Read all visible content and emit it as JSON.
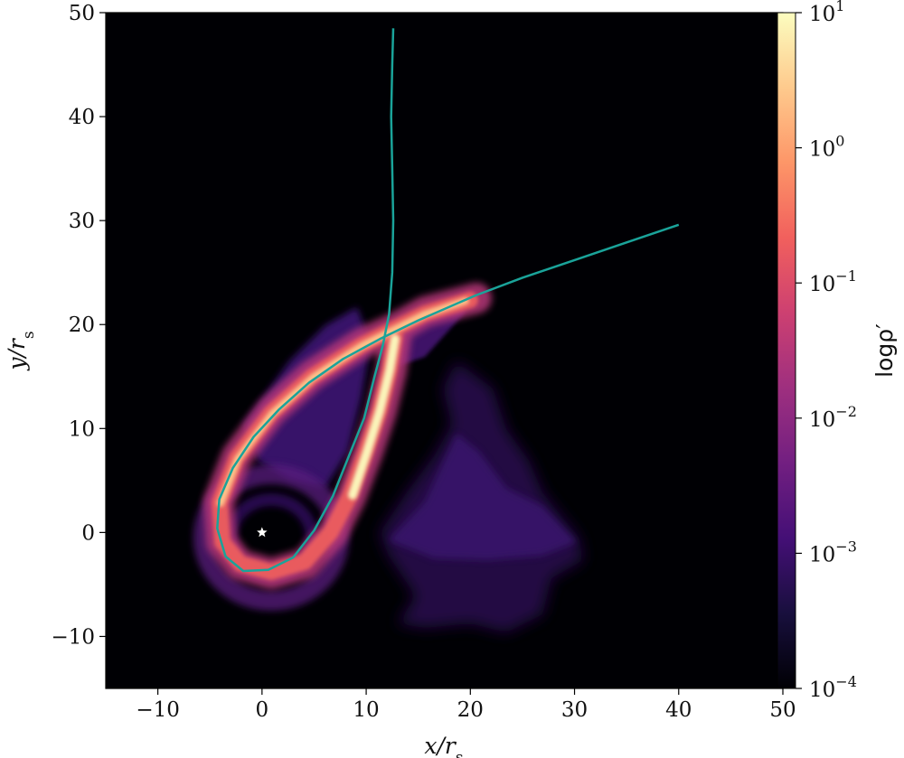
{
  "chart_data": {
    "type": "heatmap",
    "title": "",
    "xlabel": "x/r_s",
    "ylabel": "y/r_s",
    "xlim": [
      -15,
      50
    ],
    "ylim": [
      -15,
      50
    ],
    "x_ticks": [
      -10,
      0,
      10,
      20,
      30,
      40,
      50
    ],
    "y_ticks": [
      -10,
      0,
      10,
      20,
      30,
      40,
      50
    ],
    "x_tick_labels": [
      "−10",
      "0",
      "10",
      "20",
      "30",
      "40",
      "50"
    ],
    "y_tick_labels": [
      "−10",
      "0",
      "10",
      "20",
      "30",
      "40",
      "50"
    ],
    "background": "#000004",
    "colorbar": {
      "label": "logρ′",
      "scale": "log",
      "range": [
        0.0001,
        10
      ],
      "ticks": [
        {
          "value": 10,
          "base": "10",
          "exp": "1"
        },
        {
          "value": 1,
          "base": "10",
          "exp": "0"
        },
        {
          "value": 0.1,
          "base": "10",
          "exp": "−1"
        },
        {
          "value": 0.01,
          "base": "10",
          "exp": "−2"
        },
        {
          "value": 0.001,
          "base": "10",
          "exp": "−3"
        },
        {
          "value": 0.0001,
          "base": "10",
          "exp": "−4"
        }
      ],
      "colormap": "magma",
      "stops": [
        "#000004",
        "#180f3d",
        "#440f76",
        "#721f81",
        "#9e2f7f",
        "#cd4071",
        "#f1605d",
        "#fd9668",
        "#feca8d",
        "#fcfdbf"
      ]
    },
    "central_object": {
      "x": 0,
      "y": 0,
      "marker": "star",
      "color": "#ffffff"
    },
    "orbit_color": "#1aa39a",
    "series": [
      {
        "type": "line",
        "points": [
          [
            12.6,
            48.5
          ],
          [
            12.5,
            45
          ],
          [
            12.4,
            40
          ],
          [
            12.5,
            35
          ],
          [
            12.6,
            30
          ],
          [
            12.5,
            25
          ],
          [
            12.2,
            21
          ],
          [
            11.6,
            18
          ],
          [
            10.8,
            15
          ],
          [
            9.8,
            11
          ],
          [
            8.4,
            7.5
          ],
          [
            6.8,
            3.5
          ],
          [
            5.0,
            0.2
          ],
          [
            3.0,
            -2.4
          ],
          [
            0.6,
            -3.6
          ],
          [
            -1.8,
            -3.7
          ],
          [
            -3.5,
            -2.3
          ],
          [
            -4.3,
            0.4
          ],
          [
            -4.1,
            3.2
          ],
          [
            -2.8,
            6.2
          ],
          [
            -0.8,
            9.2
          ],
          [
            1.6,
            11.8
          ],
          [
            4.5,
            14.4
          ],
          [
            7.8,
            16.7
          ],
          [
            11.3,
            18.6
          ],
          [
            15.0,
            20.4
          ],
          [
            20.5,
            22.8
          ],
          [
            25.0,
            24.5
          ],
          [
            30.0,
            26.2
          ],
          [
            35.0,
            27.9
          ],
          [
            40.0,
            29.6
          ]
        ]
      }
    ]
  }
}
